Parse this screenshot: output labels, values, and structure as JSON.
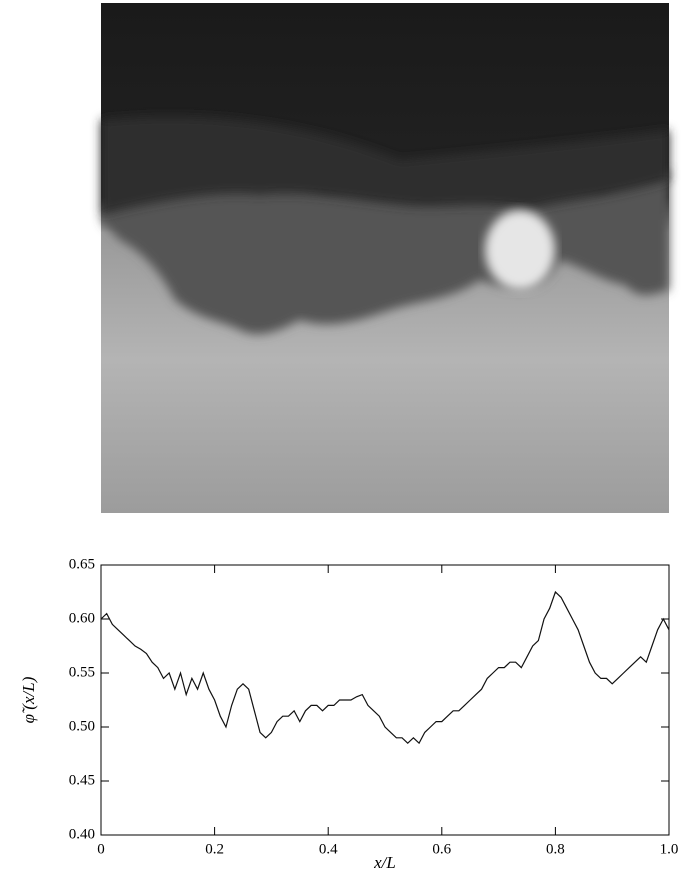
{
  "chart_data": {
    "type": "line",
    "xlabel": "x/L",
    "ylabel": "φ̃ (x/L)",
    "xlim": [
      0,
      1
    ],
    "ylim": [
      0.4,
      0.65
    ],
    "xticks": [
      0,
      0.2,
      0.4,
      0.6,
      0.8,
      {
        "value": 1,
        "label": "1.0"
      }
    ],
    "yticks": [
      {
        "value": 0.4,
        "label": "0.40"
      },
      0.45,
      {
        "value": 0.5,
        "label": "0.50"
      },
      0.55,
      {
        "value": 0.6,
        "label": "0.60"
      },
      0.65
    ],
    "color": "#111111",
    "x": [
      0,
      0.01,
      0.02,
      0.03,
      0.04,
      0.05,
      0.06,
      0.07,
      0.08,
      0.09,
      0.1,
      0.11,
      0.12,
      0.13,
      0.14,
      0.15,
      0.16,
      0.17,
      0.18,
      0.19,
      0.2,
      0.21,
      0.22,
      0.23,
      0.24,
      0.25,
      0.26,
      0.27,
      0.28,
      0.29,
      0.3,
      0.31,
      0.32,
      0.33,
      0.34,
      0.35,
      0.36,
      0.37,
      0.38,
      0.39,
      0.4,
      0.41,
      0.42,
      0.43,
      0.44,
      0.45,
      0.46,
      0.47,
      0.48,
      0.49,
      0.5,
      0.51,
      0.52,
      0.53,
      0.54,
      0.55,
      0.56,
      0.57,
      0.58,
      0.59,
      0.6,
      0.61,
      0.62,
      0.63,
      0.64,
      0.65,
      0.66,
      0.67,
      0.68,
      0.69,
      0.7,
      0.71,
      0.72,
      0.73,
      0.74,
      0.75,
      0.76,
      0.77,
      0.78,
      0.79,
      0.8,
      0.81,
      0.82,
      0.83,
      0.84,
      0.85,
      0.86,
      0.87,
      0.88,
      0.89,
      0.9,
      0.91,
      0.92,
      0.93,
      0.94,
      0.95,
      0.96,
      0.97,
      0.98,
      0.99,
      1
    ],
    "values": [
      0.6,
      0.605,
      0.595,
      0.59,
      0.585,
      0.58,
      0.575,
      0.572,
      0.568,
      0.56,
      0.555,
      0.545,
      0.55,
      0.535,
      0.55,
      0.53,
      0.545,
      0.535,
      0.55,
      0.535,
      0.525,
      0.51,
      0.5,
      0.52,
      0.535,
      0.54,
      0.535,
      0.515,
      0.495,
      0.49,
      0.495,
      0.505,
      0.51,
      0.51,
      0.515,
      0.505,
      0.515,
      0.52,
      0.52,
      0.515,
      0.52,
      0.52,
      0.525,
      0.525,
      0.525,
      0.528,
      0.53,
      0.52,
      0.515,
      0.51,
      0.5,
      0.495,
      0.49,
      0.49,
      0.485,
      0.49,
      0.485,
      0.495,
      0.5,
      0.505,
      0.505,
      0.51,
      0.515,
      0.515,
      0.52,
      0.525,
      0.53,
      0.535,
      0.545,
      0.55,
      0.555,
      0.555,
      0.56,
      0.56,
      0.555,
      0.565,
      0.575,
      0.58,
      0.6,
      0.61,
      0.625,
      0.62,
      0.61,
      0.6,
      0.59,
      0.575,
      0.56,
      0.55,
      0.545,
      0.545,
      0.54,
      0.545,
      0.55,
      0.555,
      0.56,
      0.565,
      0.56,
      0.575,
      0.59,
      0.6,
      0.59
    ]
  }
}
